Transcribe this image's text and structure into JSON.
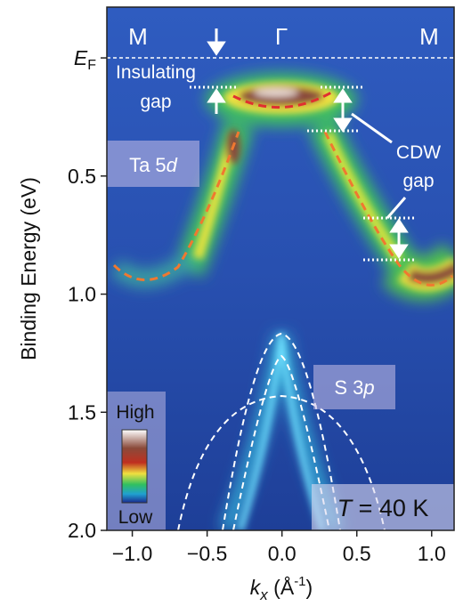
{
  "chart_data": {
    "type": "heatmap",
    "xlabel": [
      "k",
      "x",
      " (Å",
      "-1",
      ")"
    ],
    "ylabel": "Binding Energy (eV)",
    "xlim": [
      -1.17,
      1.15
    ],
    "ylim": [
      -0.215,
      2.0
    ],
    "xticks": [
      {
        "value": -1,
        "label": "−1.0"
      },
      {
        "value": -0.5,
        "label": "−0.5"
      },
      {
        "value": 0,
        "label": "0.0"
      },
      0.5,
      {
        "value": 1,
        "label": "1.0"
      }
    ],
    "yticks": [
      {
        "value": 0,
        "label": [
          "E",
          "F"
        ]
      },
      0.5,
      {
        "value": 1,
        "label": "1.0"
      },
      1.5,
      {
        "value": 2,
        "label": "2.0"
      }
    ],
    "annotations": {
      "symmetry_points": [
        "M",
        "Γ",
        "M"
      ],
      "insulating_gap": [
        "Insulating",
        "gap"
      ],
      "cdw_gap": [
        "CDW",
        "gap"
      ],
      "ta_band": [
        "Ta 5",
        "d"
      ],
      "s_band": [
        "S 3",
        "p"
      ],
      "temperature": [
        "T",
        " = 40 K"
      ],
      "colorbar": {
        "high": "High",
        "low": "Low"
      }
    }
  }
}
